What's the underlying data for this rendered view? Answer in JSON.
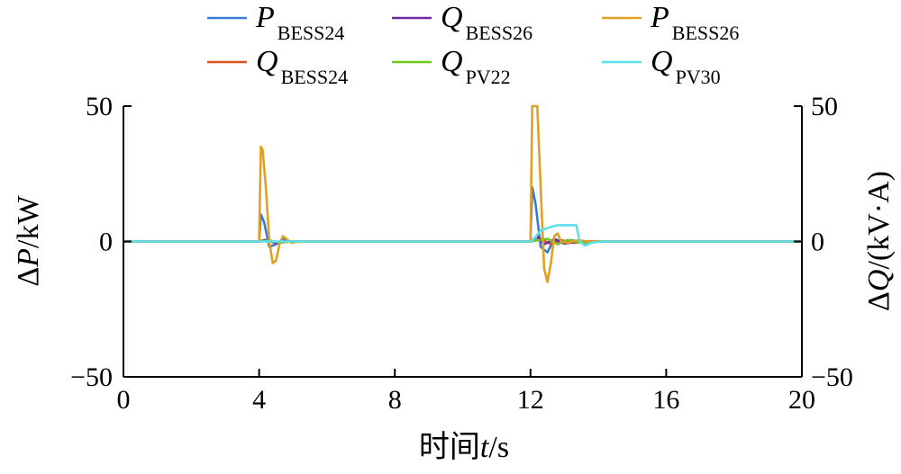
{
  "chart_data": {
    "type": "line",
    "xlabel": {
      "prefix": "时间",
      "var": "t",
      "unit": "/s"
    },
    "ylabel_left": {
      "prefix": "Δ",
      "var": "P",
      "unit": "/kW"
    },
    "ylabel_right": {
      "prefix": "Δ",
      "var": "Q",
      "unit": "/(kV·A)"
    },
    "xlim": [
      0,
      20
    ],
    "ylim": [
      -50,
      50
    ],
    "y2lim": [
      -50,
      50
    ],
    "x_ticks": [
      "0",
      "4",
      "8",
      "12",
      "16",
      "20"
    ],
    "y_ticks": [
      "50",
      "0",
      "−50"
    ],
    "y2_ticks": [
      "50",
      "0",
      "−50"
    ],
    "grid": false,
    "legend_position": "top",
    "series": [
      {
        "name": "P",
        "sub": "BESS24",
        "color": "#3a7bd5",
        "points": [
          [
            0,
            0
          ],
          [
            4.0,
            0
          ],
          [
            4.05,
            10
          ],
          [
            4.15,
            7
          ],
          [
            4.3,
            -2
          ],
          [
            4.5,
            -1
          ],
          [
            4.7,
            1
          ],
          [
            4.9,
            0
          ],
          [
            5.2,
            0
          ],
          [
            12.0,
            0
          ],
          [
            12.05,
            20
          ],
          [
            12.15,
            14
          ],
          [
            12.3,
            -2
          ],
          [
            12.5,
            -4
          ],
          [
            12.7,
            1
          ],
          [
            12.9,
            0
          ],
          [
            13.2,
            0.5
          ],
          [
            13.6,
            -0.5
          ],
          [
            14,
            0
          ],
          [
            20,
            0
          ]
        ]
      },
      {
        "name": "Q",
        "sub": "BESS24",
        "color": "#d9531e",
        "points": [
          [
            0,
            0
          ],
          [
            4.0,
            0
          ],
          [
            4.2,
            0.5
          ],
          [
            4.5,
            -0.5
          ],
          [
            4.8,
            0
          ],
          [
            12.0,
            0
          ],
          [
            12.3,
            1
          ],
          [
            12.6,
            -1
          ],
          [
            12.9,
            0.5
          ],
          [
            13.3,
            -0.5
          ],
          [
            13.6,
            0
          ],
          [
            20,
            0
          ]
        ]
      },
      {
        "name": "Q",
        "sub": "BESS26",
        "color": "#6a2ca3",
        "points": [
          [
            0,
            0
          ],
          [
            4.0,
            0
          ],
          [
            4.2,
            0.6
          ],
          [
            4.5,
            -0.6
          ],
          [
            4.8,
            0
          ],
          [
            12.0,
            0
          ],
          [
            12.2,
            2
          ],
          [
            12.4,
            -1
          ],
          [
            12.7,
            0.8
          ],
          [
            13,
            -0.8
          ],
          [
            13.4,
            0
          ],
          [
            20,
            0
          ]
        ]
      },
      {
        "name": "Q",
        "sub": "PV22",
        "color": "#6ec61e",
        "points": [
          [
            0,
            0
          ],
          [
            4.0,
            0
          ],
          [
            4.3,
            0.4
          ],
          [
            4.6,
            -0.4
          ],
          [
            5,
            0
          ],
          [
            12.0,
            0
          ],
          [
            12.5,
            1
          ],
          [
            12.8,
            -1
          ],
          [
            13.1,
            0.6
          ],
          [
            13.5,
            -0.5
          ],
          [
            13.9,
            0
          ],
          [
            20,
            0
          ]
        ]
      },
      {
        "name": "P",
        "sub": "BESS26",
        "color": "#e0a024",
        "points": [
          [
            0,
            0
          ],
          [
            4.0,
            0
          ],
          [
            4.05,
            35
          ],
          [
            4.1,
            34
          ],
          [
            4.2,
            20
          ],
          [
            4.3,
            0
          ],
          [
            4.4,
            -8
          ],
          [
            4.5,
            -7
          ],
          [
            4.6,
            -1
          ],
          [
            4.7,
            2
          ],
          [
            4.8,
            1
          ],
          [
            4.95,
            -0.5
          ],
          [
            5.2,
            0
          ],
          [
            12.0,
            0
          ],
          [
            12.05,
            50
          ],
          [
            12.2,
            50
          ],
          [
            12.3,
            20
          ],
          [
            12.4,
            -10
          ],
          [
            12.5,
            -15
          ],
          [
            12.6,
            -8
          ],
          [
            12.7,
            2
          ],
          [
            12.8,
            3
          ],
          [
            12.9,
            0
          ],
          [
            13.1,
            -0.5
          ],
          [
            13.4,
            0.5
          ],
          [
            13.7,
            0
          ],
          [
            20,
            0
          ]
        ]
      },
      {
        "name": "Q",
        "sub": "PV30",
        "color": "#5ee0ee",
        "points": [
          [
            0,
            0
          ],
          [
            12.0,
            0
          ],
          [
            12.1,
            1
          ],
          [
            12.3,
            4
          ],
          [
            12.5,
            5
          ],
          [
            12.8,
            6
          ],
          [
            13.0,
            6
          ],
          [
            13.35,
            6
          ],
          [
            13.45,
            0
          ],
          [
            13.6,
            -1.5
          ],
          [
            13.8,
            -0.5
          ],
          [
            14.1,
            0
          ],
          [
            20,
            0
          ]
        ]
      }
    ]
  }
}
